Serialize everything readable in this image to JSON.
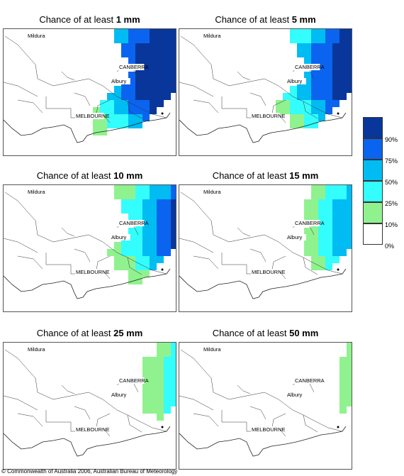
{
  "panels": [
    {
      "prefix": "Chance of at least ",
      "amount": "1 mm",
      "level": 6
    },
    {
      "prefix": "Chance of at least ",
      "amount": "5 mm",
      "level": 5
    },
    {
      "prefix": "Chance of at least ",
      "amount": "10 mm",
      "level": 4
    },
    {
      "prefix": "Chance of at least ",
      "amount": "15 mm",
      "level": 3
    },
    {
      "prefix": "Chance of at least ",
      "amount": "25 mm",
      "level": 2
    },
    {
      "prefix": "Chance of at least ",
      "amount": "50 mm",
      "level": 1
    }
  ],
  "map_labels": {
    "mildura": "Mildura",
    "canberra": "CANBERRA",
    "albury": "Albury",
    "melbourne": "MELBOURNE"
  },
  "legend": {
    "colors": [
      "#08369a",
      "#0a64f0",
      "#00bcf2",
      "#33fdfd",
      "#90f28e",
      "#ffffff"
    ],
    "labels": [
      "90%",
      "75%",
      "50%",
      "25%",
      "10%",
      "0%"
    ]
  },
  "copyright": "© Commonwealth of Australia 2006, Australian Bureau of Meteorology"
}
